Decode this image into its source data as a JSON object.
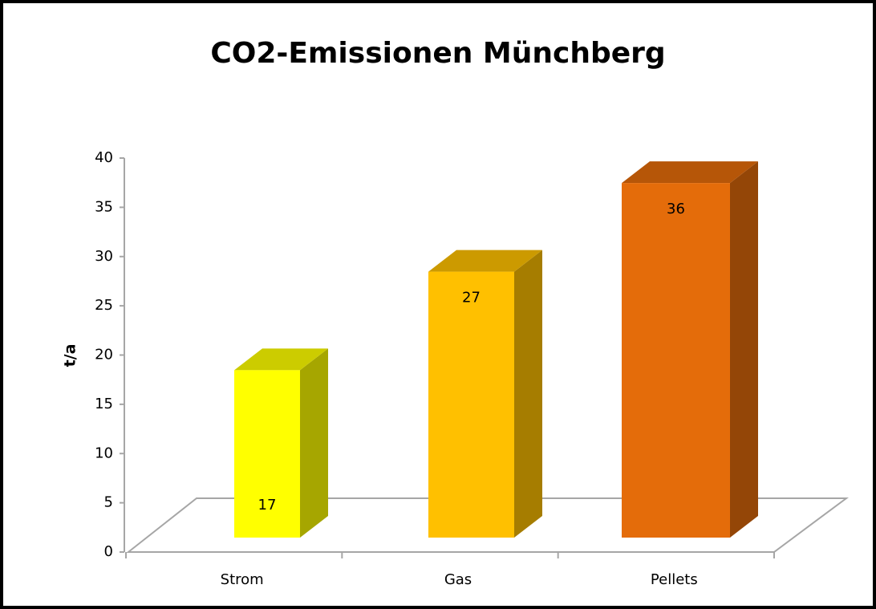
{
  "chart_data": {
    "type": "bar3d",
    "title": "CO2-Emissionen Münchberg",
    "y_label": "t/a",
    "categories": [
      "Strom",
      "Gas",
      "Pellets"
    ],
    "values": [
      17,
      27,
      36
    ],
    "colors": [
      "#ffff00",
      "#ffc000",
      "#e46c0a"
    ],
    "ylim": [
      0,
      40
    ],
    "yticks": [
      0,
      5,
      10,
      15,
      20,
      25,
      30,
      35,
      40
    ],
    "grid": false
  }
}
